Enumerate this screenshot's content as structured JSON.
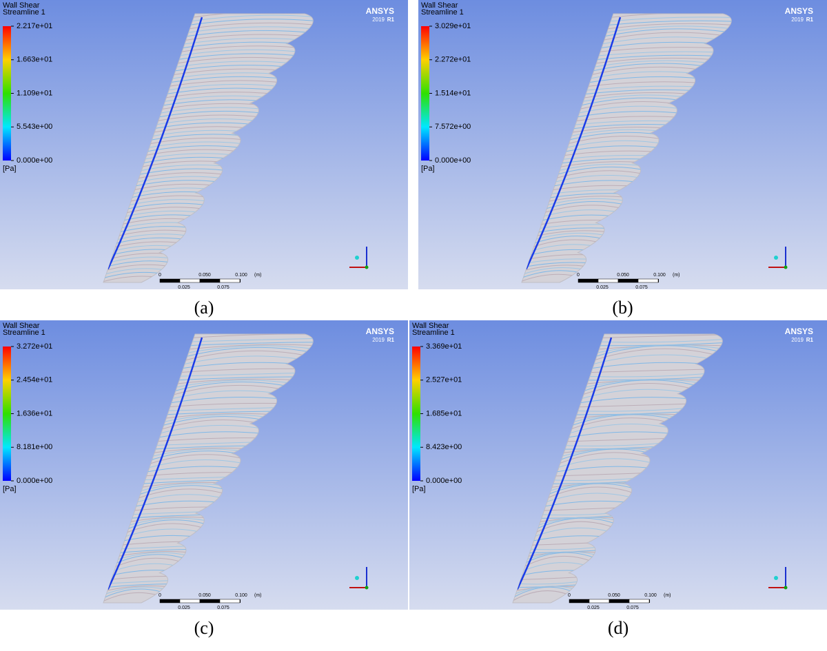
{
  "panels": [
    {
      "title": "Wall Shear",
      "subtitle": "Streamline 1",
      "legend_ticks": [
        "2.217e+01",
        "1.663e+01",
        "1.109e+01",
        "5.543e+00",
        "0.000e+00"
      ],
      "unit": "[Pa]",
      "brand": "ANSYS",
      "version": "2019",
      "release": "R1",
      "scale_top": [
        "0",
        "0.050",
        "0.100",
        "(m)"
      ],
      "scale_bottom": [
        "0.025",
        "0.075"
      ],
      "caption": "(a)"
    },
    {
      "title": "Wall Shear",
      "subtitle": "Streamline 1",
      "legend_ticks": [
        "3.029e+01",
        "2.272e+01",
        "1.514e+01",
        "7.572e+00",
        "0.000e+00"
      ],
      "unit": "[Pa]",
      "brand": "ANSYS",
      "version": "2019",
      "release": "R1",
      "scale_top": [
        "0",
        "0.050",
        "0.100",
        "(m)"
      ],
      "scale_bottom": [
        "0.025",
        "0.075"
      ],
      "caption": "(b)"
    },
    {
      "title": "Wall Shear",
      "subtitle": "Streamline 1",
      "legend_ticks": [
        "3.272e+01",
        "2.454e+01",
        "1.636e+01",
        "8.181e+00",
        "0.000e+00"
      ],
      "unit": "[Pa]",
      "brand": "ANSYS",
      "version": "2019",
      "release": "R1",
      "scale_top": [
        "0",
        "0.050",
        "0.100",
        "(m)"
      ],
      "scale_bottom": [
        "0.025",
        "0.075"
      ],
      "caption": "(c)"
    },
    {
      "title": "Wall Shear",
      "subtitle": "Streamline 1",
      "legend_ticks": [
        "3.369e+01",
        "2.527e+01",
        "1.685e+01",
        "8.423e+00",
        "0.000e+00"
      ],
      "unit": "[Pa]",
      "brand": "ANSYS",
      "version": "2019",
      "release": "R1",
      "scale_top": [
        "0",
        "0.050",
        "0.100",
        "(m)"
      ],
      "scale_bottom": [
        "0.025",
        "0.075"
      ],
      "caption": "(d)"
    }
  ]
}
